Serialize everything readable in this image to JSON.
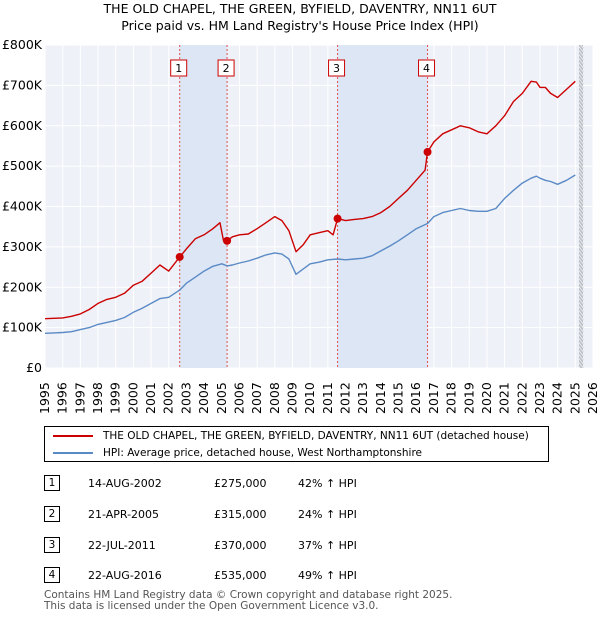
{
  "chart_data": {
    "type": "line",
    "title": "THE OLD CHAPEL, THE GREEN, BYFIELD, DAVENTRY, NN11 6UT",
    "subtitle": "Price paid vs. HM Land Registry's House Price Index (HPI)",
    "xlabel": "",
    "ylabel": "",
    "xlim": [
      1995,
      2026
    ],
    "ylim": [
      0,
      800000
    ],
    "y_ticks": [
      {
        "value": 0,
        "label": "£0"
      },
      {
        "value": 100000,
        "label": "£100K"
      },
      {
        "value": 200000,
        "label": "£200K"
      },
      {
        "value": 300000,
        "label": "£300K"
      },
      {
        "value": 400000,
        "label": "£400K"
      },
      {
        "value": 500000,
        "label": "£500K"
      },
      {
        "value": 600000,
        "label": "£600K"
      },
      {
        "value": 700000,
        "label": "£700K"
      },
      {
        "value": 800000,
        "label": "£800K"
      }
    ],
    "x_ticks": [
      "1995",
      "1996",
      "1997",
      "1998",
      "1999",
      "2000",
      "2001",
      "2002",
      "2003",
      "2004",
      "2005",
      "2006",
      "2007",
      "2008",
      "2009",
      "2010",
      "2011",
      "2012",
      "2013",
      "2014",
      "2015",
      "2016",
      "2017",
      "2018",
      "2019",
      "2020",
      "2021",
      "2022",
      "2023",
      "2024",
      "2025",
      "2026"
    ],
    "grid": true,
    "shaded_periods": [
      [
        2002.62,
        2005.3
      ],
      [
        2011.55,
        2016.64
      ]
    ],
    "forecast_from": 2025.2,
    "series": [
      {
        "name": "THE OLD CHAPEL, THE GREEN, BYFIELD, DAVENTRY, NN11 6UT (detached house)",
        "color": "#cc0000",
        "x": [
          1995.0,
          1995.5,
          1996.0,
          1996.5,
          1997.0,
          1997.5,
          1998.0,
          1998.5,
          1999.0,
          1999.5,
          2000.0,
          2000.5,
          2001.0,
          2001.5,
          2002.0,
          2002.62,
          2003.0,
          2003.5,
          2004.0,
          2004.5,
          2004.9,
          2005.1,
          2005.3,
          2005.6,
          2006.0,
          2006.5,
          2007.0,
          2007.5,
          2008.0,
          2008.4,
          2008.8,
          2009.2,
          2009.6,
          2010.0,
          2010.5,
          2011.0,
          2011.3,
          2011.55,
          2012.0,
          2012.5,
          2013.0,
          2013.5,
          2014.0,
          2014.5,
          2015.0,
          2015.5,
          2016.0,
          2016.5,
          2016.64,
          2017.0,
          2017.5,
          2018.0,
          2018.5,
          2019.0,
          2019.5,
          2020.0,
          2020.5,
          2021.0,
          2021.5,
          2022.0,
          2022.5,
          2022.8,
          2023.0,
          2023.3,
          2023.6,
          2024.0,
          2024.5,
          2025.0
        ],
        "values": [
          122000,
          123000,
          124000,
          128000,
          134000,
          145000,
          160000,
          170000,
          175000,
          185000,
          205000,
          215000,
          235000,
          255000,
          240000,
          275000,
          295000,
          320000,
          330000,
          345000,
          360000,
          315000,
          315000,
          325000,
          330000,
          332000,
          345000,
          360000,
          375000,
          365000,
          340000,
          288000,
          305000,
          330000,
          335000,
          340000,
          330000,
          370000,
          365000,
          368000,
          370000,
          375000,
          385000,
          400000,
          420000,
          440000,
          465000,
          490000,
          535000,
          560000,
          580000,
          590000,
          600000,
          595000,
          585000,
          580000,
          600000,
          625000,
          660000,
          680000,
          710000,
          708000,
          695000,
          695000,
          680000,
          670000,
          690000,
          710000
        ]
      },
      {
        "name": "HPI: Average price, detached house, West Northamptonshire",
        "color": "#5a8ac6",
        "x": [
          1995.0,
          1995.5,
          1996.0,
          1996.5,
          1997.0,
          1997.5,
          1998.0,
          1998.5,
          1999.0,
          1999.5,
          2000.0,
          2000.5,
          2001.0,
          2001.5,
          2002.0,
          2002.62,
          2003.0,
          2003.5,
          2004.0,
          2004.5,
          2005.0,
          2005.3,
          2005.6,
          2006.0,
          2006.5,
          2007.0,
          2007.5,
          2008.0,
          2008.4,
          2008.8,
          2009.2,
          2009.6,
          2010.0,
          2010.5,
          2011.0,
          2011.55,
          2012.0,
          2012.5,
          2013.0,
          2013.5,
          2014.0,
          2014.5,
          2015.0,
          2015.5,
          2016.0,
          2016.64,
          2017.0,
          2017.5,
          2018.0,
          2018.5,
          2019.0,
          2019.5,
          2020.0,
          2020.5,
          2021.0,
          2021.5,
          2022.0,
          2022.5,
          2022.8,
          2023.0,
          2023.3,
          2023.6,
          2024.0,
          2024.5,
          2025.0
        ],
        "values": [
          86000,
          87000,
          88000,
          90000,
          95000,
          100000,
          108000,
          113000,
          118000,
          125000,
          138000,
          148000,
          160000,
          172000,
          175000,
          193000,
          210000,
          225000,
          240000,
          252000,
          258000,
          253000,
          255000,
          260000,
          265000,
          272000,
          280000,
          285000,
          282000,
          270000,
          232000,
          245000,
          258000,
          262000,
          268000,
          270000,
          268000,
          270000,
          272000,
          278000,
          290000,
          302000,
          315000,
          330000,
          345000,
          358000,
          375000,
          385000,
          390000,
          395000,
          390000,
          388000,
          388000,
          395000,
          420000,
          440000,
          458000,
          470000,
          475000,
          470000,
          465000,
          462000,
          455000,
          465000,
          478000
        ]
      }
    ],
    "sales": [
      {
        "label": "1",
        "x": 2002.62,
        "value": 275000
      },
      {
        "label": "2",
        "x": 2005.3,
        "value": 315000
      },
      {
        "label": "3",
        "x": 2011.55,
        "value": 370000
      },
      {
        "label": "4",
        "x": 2016.64,
        "value": 535000
      }
    ]
  },
  "legend": {
    "property_label": "THE OLD CHAPEL, THE GREEN, BYFIELD, DAVENTRY, NN11 6UT (detached house)",
    "hpi_label": "HPI: Average price, detached house, West Northamptonshire",
    "property_color": "#cc0000",
    "hpi_color": "#5a8ac6"
  },
  "transactions": [
    {
      "num": "1",
      "date": "14-AUG-2002",
      "price": "£275,000",
      "hpi": "42% ↑ HPI"
    },
    {
      "num": "2",
      "date": "21-APR-2005",
      "price": "£315,000",
      "hpi": "24% ↑ HPI"
    },
    {
      "num": "3",
      "date": "22-JUL-2011",
      "price": "£370,000",
      "hpi": "37% ↑ HPI"
    },
    {
      "num": "4",
      "date": "22-AUG-2016",
      "price": "£535,000",
      "hpi": "49% ↑ HPI"
    }
  ],
  "footer": {
    "line1": "Contains HM Land Registry data © Crown copyright and database right 2025.",
    "line2": "This data is licensed under the Open Government Licence v3.0."
  }
}
